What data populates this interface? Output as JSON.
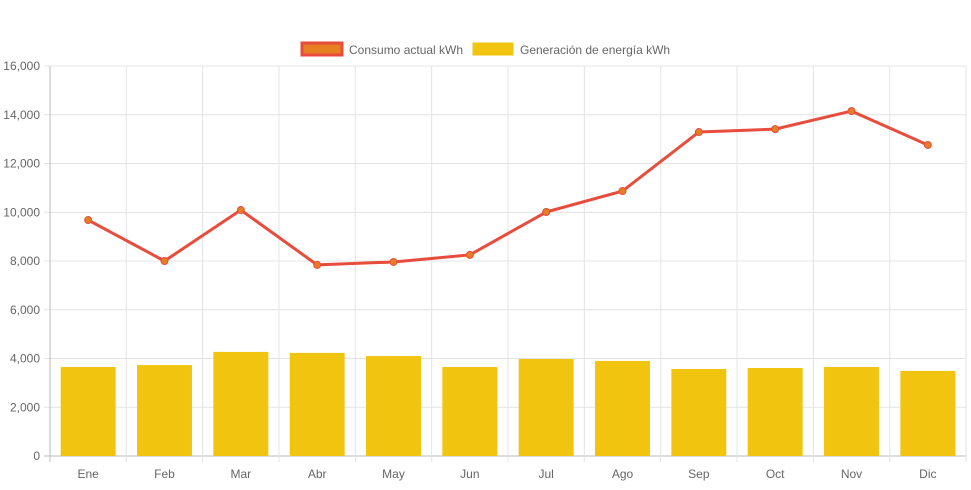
{
  "chart_data": {
    "type": "bar",
    "title": "",
    "xlabel": "",
    "ylabel": "",
    "ylim": [
      0,
      16000
    ],
    "yticks": [
      0,
      2000,
      4000,
      6000,
      8000,
      10000,
      12000,
      14000,
      16000
    ],
    "ytick_labels": [
      "0",
      "2,000",
      "4,000",
      "6,000",
      "8,000",
      "10,000",
      "12,000",
      "14,000",
      "16,000"
    ],
    "grid": true,
    "legend_position": "top",
    "categories": [
      "Ene",
      "Feb",
      "Mar",
      "Abr",
      "May",
      "Jun",
      "Jul",
      "Ago",
      "Sep",
      "Oct",
      "Nov",
      "Dic"
    ],
    "series": [
      {
        "name": "Consumo actual kWh",
        "type": "line",
        "color": "#e74c3c",
        "fill": "#e67e22",
        "values": [
          9680,
          8000,
          10090,
          7840,
          7960,
          8250,
          10010,
          10870,
          13290,
          13410,
          14150,
          12760
        ]
      },
      {
        "name": "Generación de energía kWh",
        "type": "bar",
        "color": "#f1c40f",
        "values": [
          3650,
          3730,
          4270,
          4230,
          4100,
          3650,
          3980,
          3900,
          3570,
          3610,
          3650,
          3490
        ]
      }
    ]
  }
}
